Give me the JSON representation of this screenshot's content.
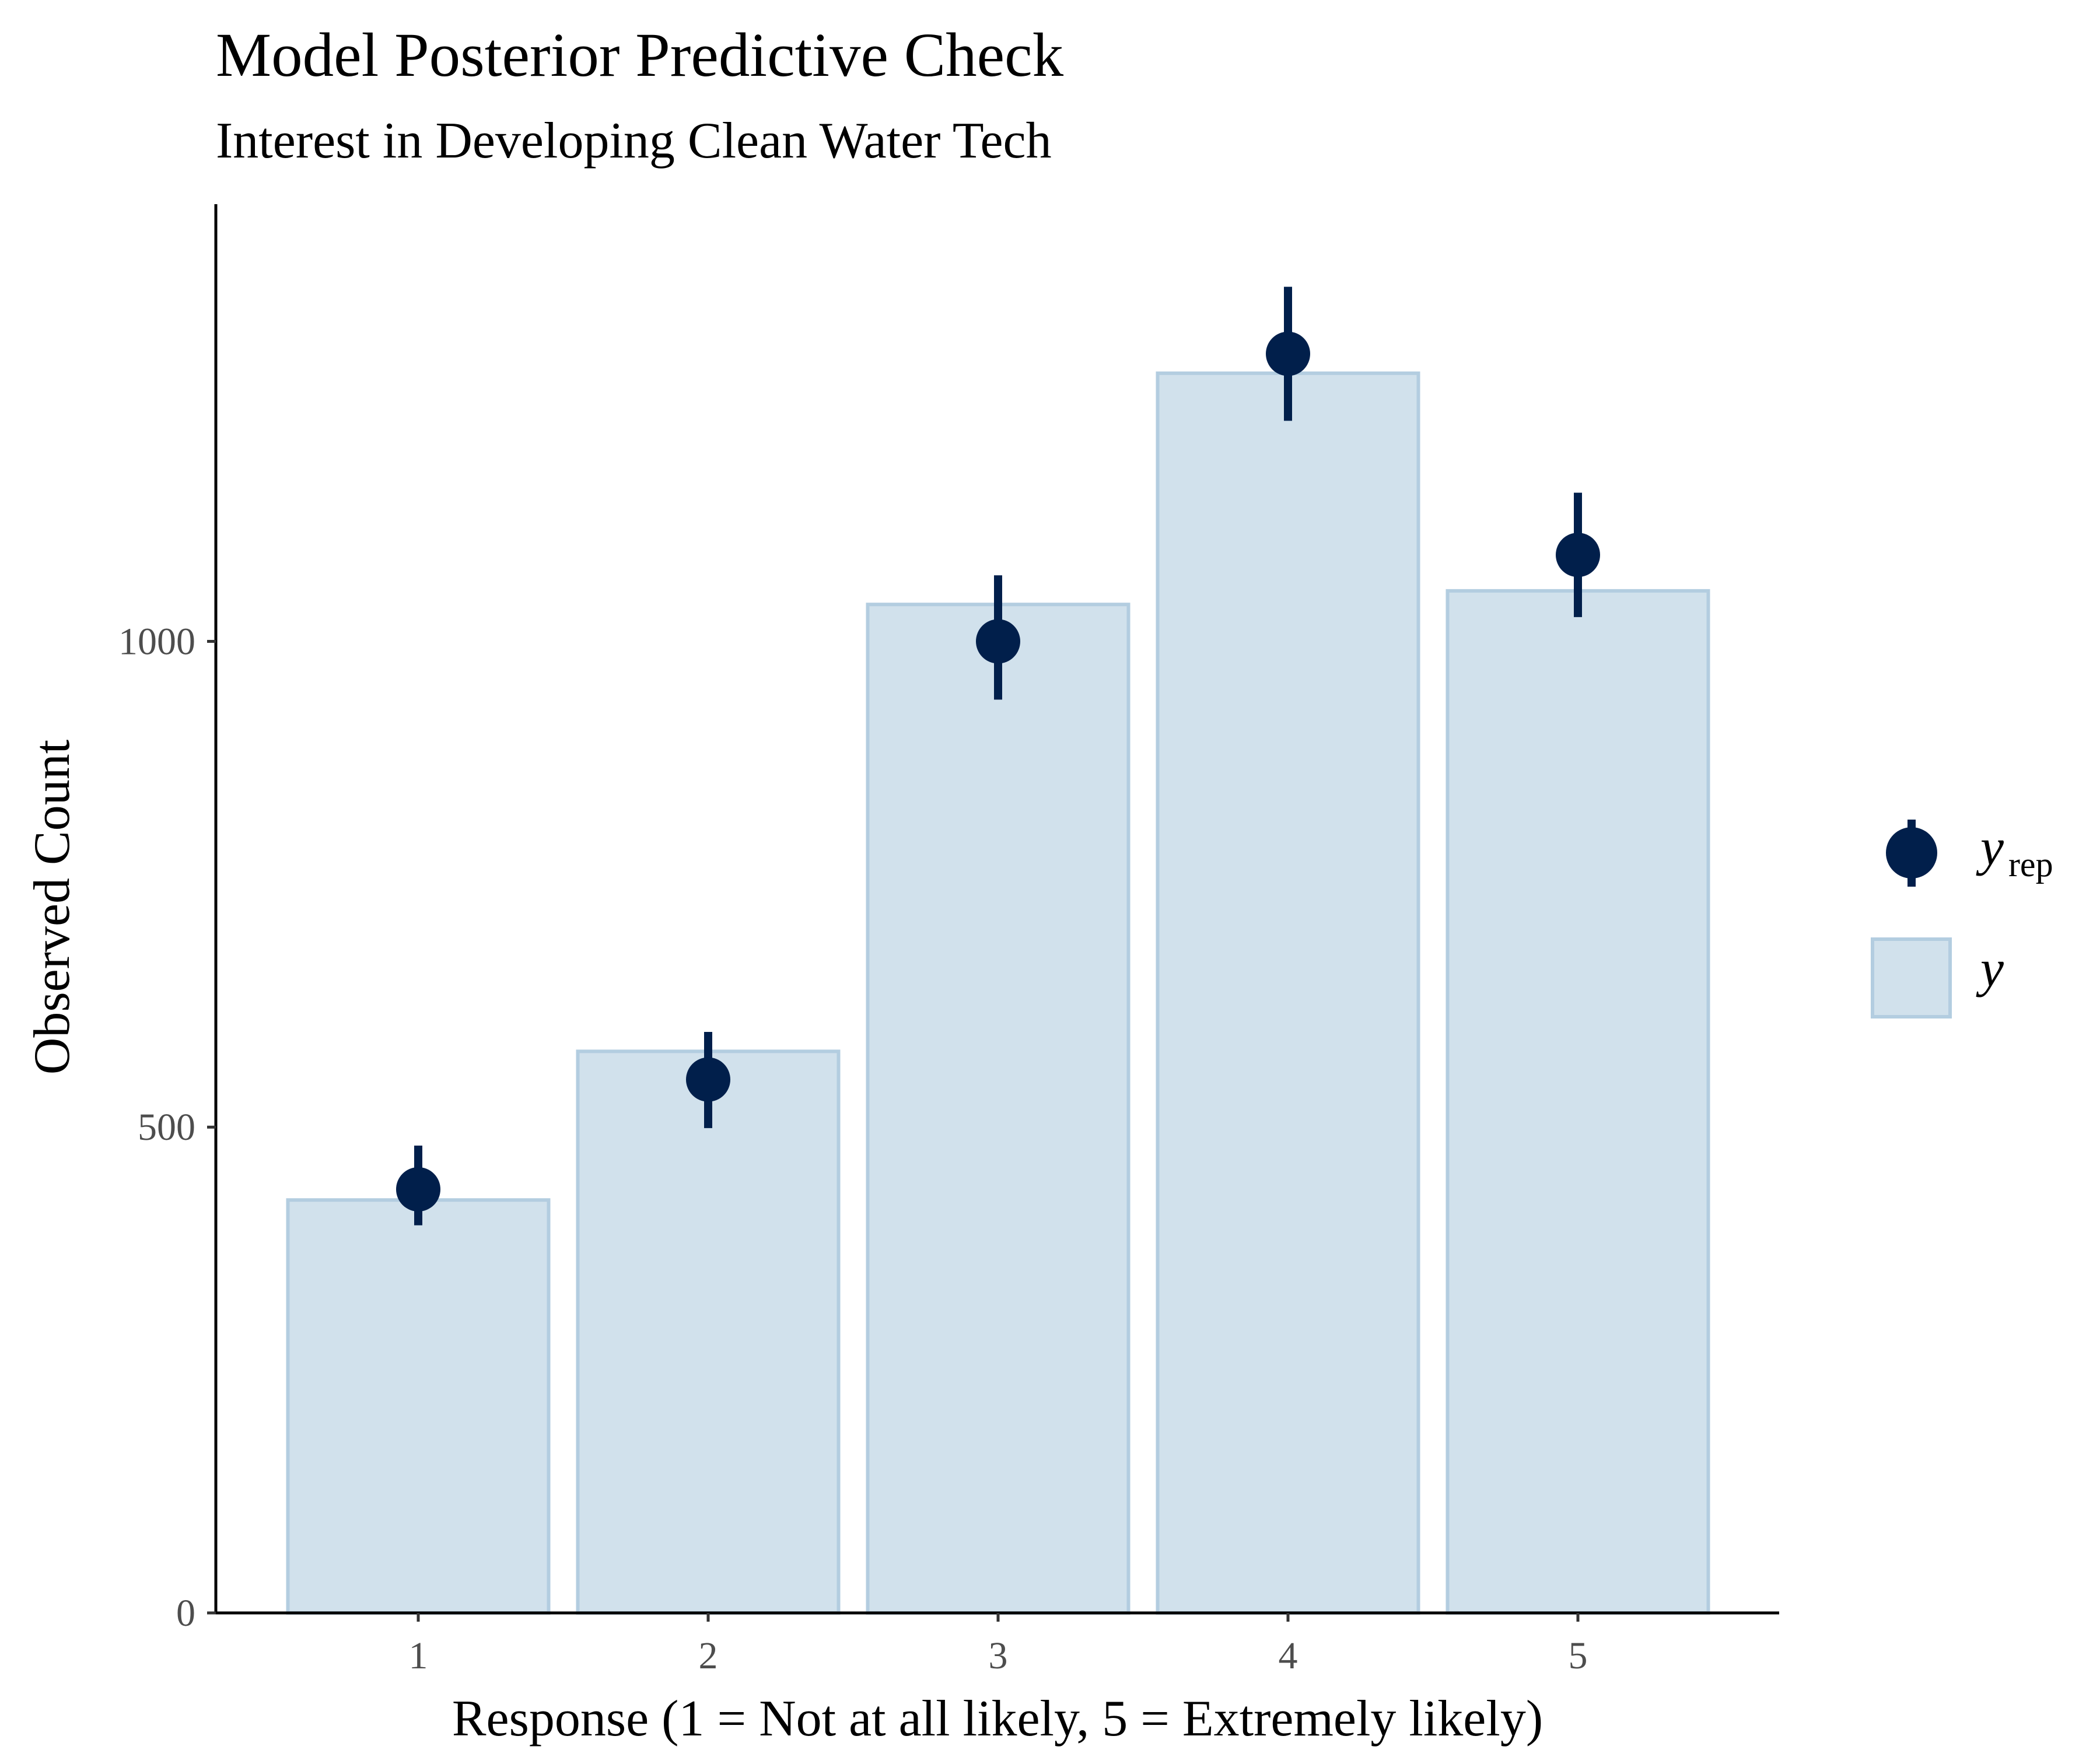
{
  "chart_data": {
    "type": "bar",
    "title": "Model Posterior Predictive Check",
    "subtitle": "Interest in Developing Clean Water Tech",
    "xlabel": "Response (1 = Not at all likely, 5 = Extremely likely)",
    "ylabel": "Observed Count",
    "categories": [
      "1",
      "2",
      "3",
      "4",
      "5"
    ],
    "ylim": [
      0,
      1450
    ],
    "yticks": [
      0,
      500,
      1000
    ],
    "grid": false,
    "legend_position": "right",
    "series": [
      {
        "name": "y",
        "kind": "bar",
        "values": [
          425,
          578,
          1038,
          1276,
          1052
        ]
      },
      {
        "name": "y_rep",
        "kind": "pointrange",
        "values": [
          436,
          549,
          1000,
          1296,
          1089
        ],
        "lower": [
          399,
          499,
          940,
          1227,
          1025
        ],
        "upper": [
          481,
          598,
          1068,
          1365,
          1153
        ]
      }
    ],
    "legend": [
      {
        "symbol": "y",
        "subscript": "rep"
      },
      {
        "symbol": "y",
        "subscript": ""
      }
    ],
    "colors": {
      "bar_fill": "#d1e1ec",
      "bar_stroke": "#b3cde0",
      "point": "#011f4b",
      "axis": "#000000",
      "tick_label": "#4d4d4d"
    }
  }
}
